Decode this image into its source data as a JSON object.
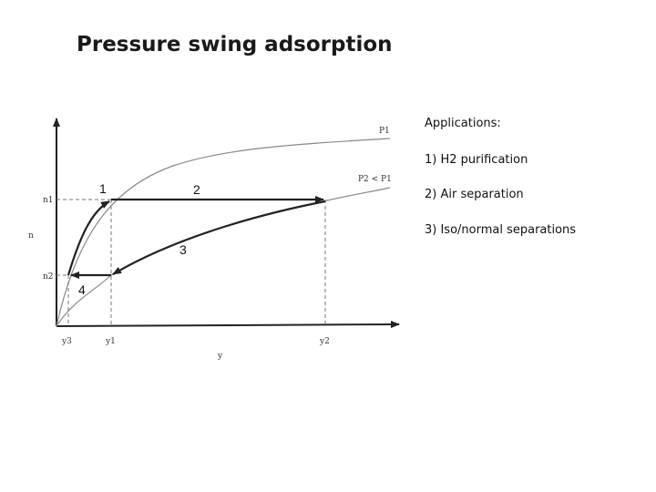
{
  "slide": {
    "title": "Pressure swing adsorption"
  },
  "applications": {
    "heading": "Applications:",
    "items": [
      "1) H2 purification",
      "2) Air separation",
      "3) Iso/normal separations"
    ]
  },
  "diagram": {
    "axis_labels": {
      "y_axis": "n",
      "x_axis": "y"
    },
    "curve_labels": {
      "high_pressure": "P1",
      "low_pressure": "P2 < P1"
    },
    "y_ticks": [
      "n1",
      "n2"
    ],
    "x_ticks": [
      "y3",
      "y1",
      "y2"
    ],
    "step_labels": [
      "1",
      "2",
      "3",
      "4"
    ]
  }
}
